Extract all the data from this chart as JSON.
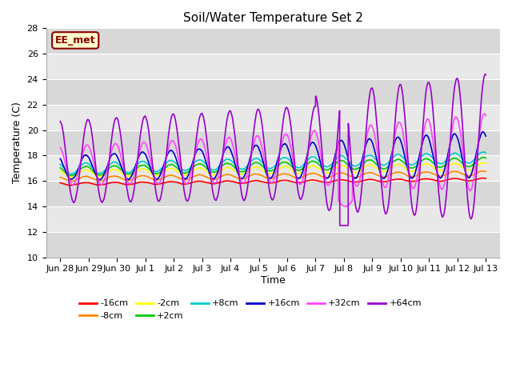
{
  "title": "Soil/Water Temperature Set 2",
  "xlabel": "Time",
  "ylabel": "Temperature (C)",
  "ylim": [
    10,
    28
  ],
  "yticks": [
    10,
    12,
    14,
    16,
    18,
    20,
    22,
    24,
    26,
    28
  ],
  "x_tick_labels": [
    "Jun 28",
    "Jun 29",
    "Jun 30",
    "Jul 1",
    "Jul 2",
    "Jul 3",
    "Jul 4",
    "Jul 5",
    "Jul 6",
    "Jul 7",
    "Jul 8",
    "Jul 9",
    "Jul 10",
    "Jul 11",
    "Jul 12",
    "Jul 13"
  ],
  "x_tick_positions": [
    0,
    1,
    2,
    3,
    4,
    5,
    6,
    7,
    8,
    9,
    10,
    11,
    12,
    13,
    14,
    15
  ],
  "background_color": "#ffffff",
  "plot_bg_color": "#e8e8e8",
  "grid_color": "#ffffff",
  "alt_band_color": "#d8d8d8",
  "watermark_text": "EE_met",
  "watermark_bg": "#ffffcc",
  "watermark_border": "#8b0000",
  "colors": {
    "-16cm": "#ff0000",
    "-8cm": "#ff8800",
    "-2cm": "#ffff00",
    "+2cm": "#00cc00",
    "+8cm": "#00cccc",
    "+16cm": "#0000cc",
    "+32cm": "#ff44ff",
    "+64cm": "#9900cc"
  },
  "legend_order": [
    "-16cm",
    "-8cm",
    "-2cm",
    "+2cm",
    "+8cm",
    "+16cm",
    "+32cm",
    "+64cm"
  ]
}
